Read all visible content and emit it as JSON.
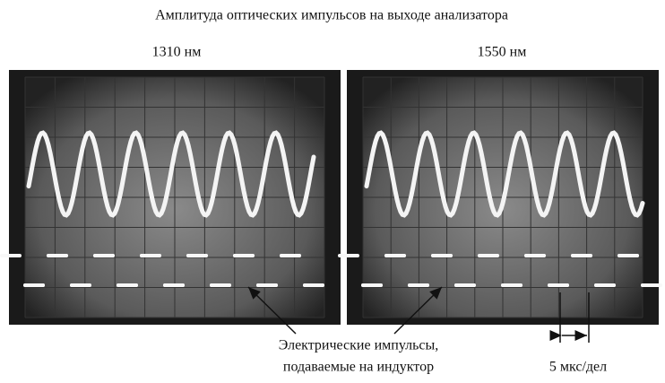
{
  "title": "Амплитуда оптических импульсов на выходе анализатора",
  "panels": [
    {
      "label": "1310 нм"
    },
    {
      "label": "1550 нм"
    }
  ],
  "annotation": {
    "lines": [
      "Электрические импульсы,",
      "подаваемые на индуктор"
    ]
  },
  "scale_label": "5 мкс/дел"
}
